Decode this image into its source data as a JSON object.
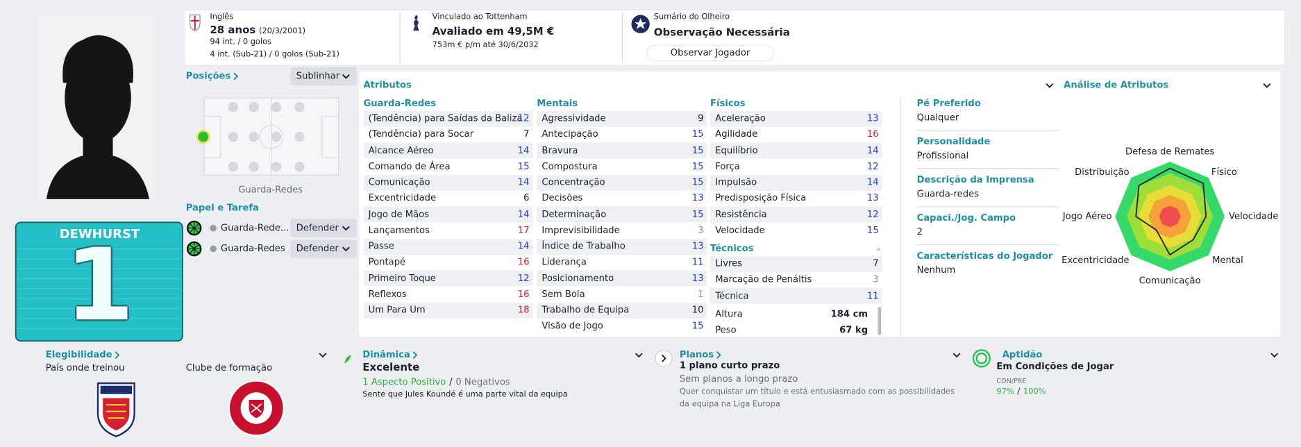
{
  "player": {
    "shirt_name": "DEWHURST",
    "shirt_number": 1
  },
  "header": {
    "nationality": "Inglês",
    "age": "28 anos",
    "birth_date": "(20/3/2001)",
    "caps": "94 int. / 0 golos",
    "u21_caps": "4 int. (Sub-21) / 0 golos (Sub-21)",
    "contract": "Vinculado ao Tottenham",
    "value": "Avaliado em 49,5M €",
    "wage": "753m € p/m até 30/6/2032",
    "scout_title": "Sumário do Olheiro",
    "scout_status": "Observação Necessária",
    "scout_button": "Observar Jogador"
  },
  "positions": {
    "title": "Posições",
    "highlight_button": "Sublinhar",
    "position": "Guarda-Redes"
  },
  "roles": {
    "title": "Papel e Tarefa",
    "rows": [
      {
        "role": "Guarda-Rede...",
        "duty": "Defender"
      },
      {
        "role": "Guarda-Redes",
        "duty": "Defender"
      }
    ]
  },
  "attributes": {
    "title": "Atributos",
    "groups": [
      {
        "name": "Guarda-Redes",
        "items": [
          {
            "name": "(Tendência) para Saídas da Baliza",
            "value": 12
          },
          {
            "name": "(Tendência) para Socar",
            "value": 7
          },
          {
            "name": "Alcance Aéreo",
            "value": 14
          },
          {
            "name": "Comando de Área",
            "value": 15
          },
          {
            "name": "Comunicação",
            "value": 14
          },
          {
            "name": "Excentricidade",
            "value": 6
          },
          {
            "name": "Jogo de Mãos",
            "value": 14
          },
          {
            "name": "Lançamentos",
            "value": 17
          },
          {
            "name": "Passe",
            "value": 14
          },
          {
            "name": "Pontapé",
            "value": 16
          },
          {
            "name": "Primeiro Toque",
            "value": 12
          },
          {
            "name": "Reflexos",
            "value": 16
          },
          {
            "name": "Um Para Um",
            "value": 18
          }
        ]
      },
      {
        "name": "Mentais",
        "items": [
          {
            "name": "Agressividade",
            "value": 9
          },
          {
            "name": "Antecipação",
            "value": 15
          },
          {
            "name": "Bravura",
            "value": 15
          },
          {
            "name": "Compostura",
            "value": 15
          },
          {
            "name": "Concentração",
            "value": 15
          },
          {
            "name": "Decisões",
            "value": 13
          },
          {
            "name": "Determinação",
            "value": 15
          },
          {
            "name": "Imprevisibilidade",
            "value": 3
          },
          {
            "name": "Índice de Trabalho",
            "value": 13
          },
          {
            "name": "Liderança",
            "value": 11
          },
          {
            "name": "Posicionamento",
            "value": 13
          },
          {
            "name": "Sem Bola",
            "value": 1
          },
          {
            "name": "Trabalho de Equipa",
            "value": 10
          },
          {
            "name": "Visão de Jogo",
            "value": 15
          }
        ]
      },
      {
        "name": "Físicos",
        "items": [
          {
            "name": "Aceleração",
            "value": 13
          },
          {
            "name": "Agilidade",
            "value": 16
          },
          {
            "name": "Equilíbrio",
            "value": 14
          },
          {
            "name": "Força",
            "value": 12
          },
          {
            "name": "Impulsão",
            "value": 14
          },
          {
            "name": "Predisposição Física",
            "value": 13
          },
          {
            "name": "Resistência",
            "value": 12
          },
          {
            "name": "Velocidade",
            "value": 15
          }
        ]
      },
      {
        "name": "Técnicos",
        "items": [
          {
            "name": "Livres",
            "value": 7
          },
          {
            "name": "Marcação de Penáltis",
            "value": 3
          },
          {
            "name": "Técnica",
            "value": 11
          }
        ]
      }
    ],
    "body": [
      {
        "label": "Altura",
        "value": "184 cm"
      },
      {
        "label": "Peso",
        "value": "67 kg"
      }
    ]
  },
  "details": [
    {
      "label": "Pé Preferido",
      "value": "Qualquer"
    },
    {
      "label": "Personalidade",
      "value": "Profissional"
    },
    {
      "label": "Descrição da Imprensa",
      "value": "Guarda-redes"
    },
    {
      "label": "Capaci./Jog. Campo",
      "value": 2
    },
    {
      "label": "Características do Jogador",
      "value": "Nenhum"
    }
  ],
  "analysis": {
    "title": "Análise de Atributos",
    "axes": [
      "Defesa de Remates",
      "Físico",
      "Velocidade",
      "Mental",
      "Comunicação",
      "Excentricidade",
      "Jogo Aéreo",
      "Distribuição"
    ]
  },
  "eligibility": {
    "title": "Elegibilidade",
    "trained_in": "País onde treinou",
    "youth_club": "Clube de formação"
  },
  "dynamics": {
    "title": "Dinâmica",
    "status": "Excelente",
    "positive": "1 Aspecto Positivo",
    "separator": "/",
    "negative": "0 Negativos",
    "note": "Sente que Jules Koundé é uma parte vital da equipa"
  },
  "plans": {
    "title": "Planos",
    "short_term": "1 plano curto prazo",
    "long_term": "Sem planos a longo prazo",
    "note": "Quer conquistar um título e está entusiasmado com as possibilidades da equipa na Liga Europa"
  },
  "fitness": {
    "title": "Aptidão",
    "status": "Em Condições de Jogar",
    "label": "CON/PRE",
    "condition": "97%",
    "separator": "/",
    "sharpness": "100%"
  }
}
